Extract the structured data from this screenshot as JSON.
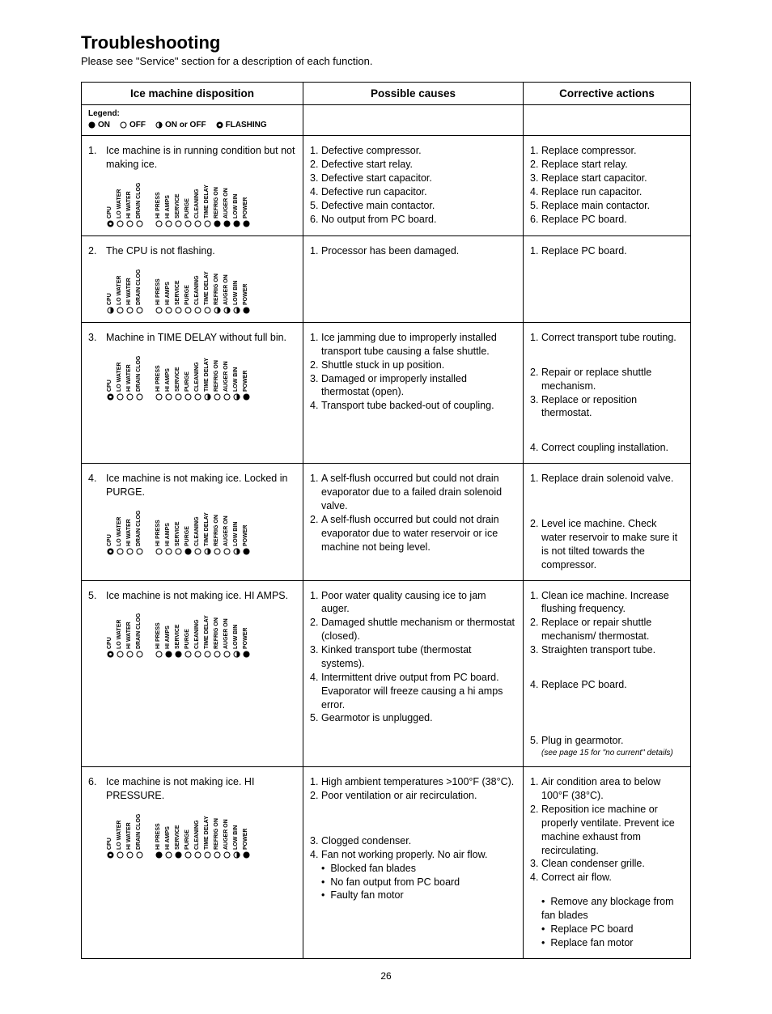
{
  "title": "Troubleshooting",
  "subtitle": "Please see \"Service\" section for a description of each function.",
  "headers": {
    "c1": "Ice machine disposition",
    "c2": "Possible causes",
    "c3": "Corrective actions"
  },
  "legend": {
    "label": "Legend:",
    "on": "ON",
    "off": "OFF",
    "onoff": "ON or OFF",
    "flash": "FLASHING"
  },
  "led_labels_g1": [
    "CPU",
    "LO WATER",
    "HI WATER",
    "DRAIN CLOG"
  ],
  "led_labels_g2": [
    "HI PRESS",
    "HI AMPS",
    "SERVICE",
    "PURGE",
    "CLEANING",
    "TIME DELAY",
    "REFRIG ON",
    "AUGER ON",
    "LOW BIN",
    "POWER"
  ],
  "rows": [
    {
      "n": "1.",
      "disp": "Ice machine is in running condition but not making ice.",
      "g1": [
        "flash",
        "off",
        "off",
        "off"
      ],
      "g2": [
        "off",
        "off",
        "off",
        "off",
        "off",
        "off",
        "on",
        "on",
        "on",
        "on"
      ],
      "causes": [
        "Defective compressor.",
        "Defective start relay.",
        "Defective start capacitor.",
        "Defective run capacitor.",
        "Defective main contactor.",
        "No output from PC board."
      ],
      "actions": [
        "Replace compressor.",
        "Replace start relay.",
        "Replace start capacitor.",
        "Replace run capacitor.",
        "Replace main contactor.",
        "Replace PC board."
      ]
    },
    {
      "n": "2.",
      "disp": "The CPU is not flashing.",
      "g1": [
        "half",
        "off",
        "off",
        "off"
      ],
      "g2": [
        "off",
        "off",
        "off",
        "off",
        "off",
        "off",
        "half",
        "half",
        "half",
        "on"
      ],
      "causes": [
        "Processor has been damaged."
      ],
      "actions": [
        "Replace PC board."
      ]
    },
    {
      "n": "3.",
      "disp": "Machine in TIME DELAY without full bin.",
      "g1": [
        "flash",
        "off",
        "off",
        "off"
      ],
      "g2": [
        "off",
        "off",
        "off",
        "off",
        "off",
        "half",
        "off",
        "off",
        "half",
        "on"
      ],
      "causes": [
        "Ice jamming due to improperly installed transport tube causing a false shuttle.",
        "Shuttle stuck in up position.",
        "Damaged or improperly installed thermostat (open).",
        "Transport tube backed-out of coupling."
      ],
      "actions": [
        "Correct transport tube routing.",
        "Repair or replace shuttle mechanism.",
        "Replace or reposition thermostat.",
        "Correct coupling installation."
      ],
      "action_spacing": [
        0,
        2,
        0,
        2
      ]
    },
    {
      "n": "4.",
      "disp": "Ice machine is not making ice. Locked in PURGE.",
      "g1": [
        "flash",
        "off",
        "off",
        "off"
      ],
      "g2": [
        "off",
        "off",
        "off",
        "on",
        "off",
        "half",
        "off",
        "off",
        "half",
        "on"
      ],
      "causes": [
        "A self-flush occurred but could not drain evaporator due to a failed drain solenoid valve.",
        "A self-flush occurred but could not drain evaporator due to water reservoir or ice machine not being level."
      ],
      "actions": [
        "Replace drain solenoid valve.",
        "Level ice machine. Check water reservoir to make sure it is not tilted towards the compressor."
      ],
      "action_spacing": [
        0,
        3
      ]
    },
    {
      "n": "5.",
      "disp": "Ice machine is not making ice. HI AMPS.",
      "g1": [
        "flash",
        "off",
        "off",
        "off"
      ],
      "g2": [
        "off",
        "on",
        "on",
        "off",
        "off",
        "off",
        "off",
        "off",
        "half",
        "on"
      ],
      "causes": [
        "Poor water quality causing ice to jam auger.",
        "Damaged shuttle mechanism or thermostat (closed).",
        "Kinked transport tube (thermostat systems).",
        "Intermittent drive output from PC board. Evaporator will freeze causing a hi amps error.",
        "Gearmotor is unplugged."
      ],
      "actions": [
        "Clean ice machine. Increase flushing frequency.",
        "Replace or repair shuttle mechanism/ thermostat.",
        "Straighten transport tube.",
        "Replace PC board.",
        "Plug in gearmotor."
      ],
      "action_spacing": [
        0,
        0,
        0,
        2,
        4
      ],
      "action_note": "(see page 15 for \"no current\" details)"
    },
    {
      "n": "6.",
      "disp": "Ice machine is not making ice. HI PRESSURE.",
      "g1": [
        "flash",
        "off",
        "off",
        "off"
      ],
      "g2": [
        "on",
        "off",
        "on",
        "off",
        "off",
        "off",
        "off",
        "off",
        "half",
        "on"
      ],
      "causes": [
        "High ambient temperatures >100°F (38°C).",
        "Poor ventilation or air recirculation.",
        "Clogged condenser.",
        "Fan not working properly. No air flow."
      ],
      "cause_spacing": [
        0,
        0,
        3,
        0
      ],
      "cause_bullets": [
        "Blocked fan blades",
        "No fan output from PC board",
        "Faulty fan motor"
      ],
      "actions": [
        "Air condition area to below 100°F (38°C).",
        "Reposition ice machine or properly ventilate. Prevent ice machine exhaust from recirculating.",
        "Clean condenser grille.",
        "Correct air flow."
      ],
      "action_bullets": [
        "Remove any blockage from fan blades",
        "Replace PC board",
        "Replace fan motor"
      ],
      "last": true
    }
  ],
  "page_num": "26"
}
